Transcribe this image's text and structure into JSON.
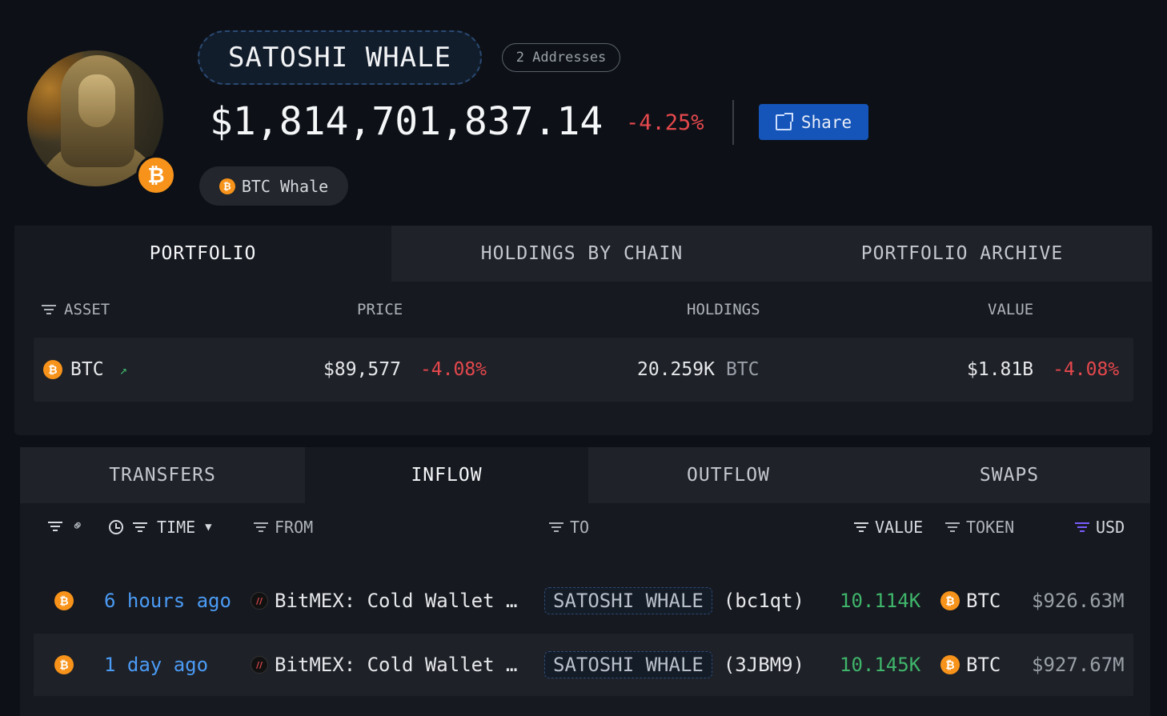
{
  "profile": {
    "name": "SATOSHI WHALE",
    "addresses": "2 Addresses",
    "total_value": "$1,814,701,837.14",
    "total_change": "-4.25%",
    "share_label": "Share",
    "tag": "BTC Whale",
    "badge_symbol": "₿"
  },
  "portfolio_tabs": [
    "PORTFOLIO",
    "HOLDINGS BY CHAIN",
    "PORTFOLIO ARCHIVE"
  ],
  "portfolio_table": {
    "headers": {
      "asset": "ASSET",
      "price": "PRICE",
      "holdings": "HOLDINGS",
      "value": "VALUE"
    },
    "rows": [
      {
        "asset": "BTC",
        "price": "$89,577",
        "price_change": "-4.08%",
        "holdings": "20.259K",
        "holdings_unit": "BTC",
        "value": "$1.81B",
        "value_change": "-4.08%"
      }
    ]
  },
  "transfer_tabs": [
    "TRANSFERS",
    "INFLOW",
    "OUTFLOW",
    "SWAPS"
  ],
  "transfers_table": {
    "headers": {
      "time": "TIME",
      "from": "FROM",
      "to": "TO",
      "value": "VALUE",
      "token": "TOKEN",
      "usd": "USD"
    },
    "rows": [
      {
        "time": "6 hours ago",
        "from": "BitMEX: Cold Wallet …",
        "to_entity": "SATOSHI WHALE",
        "to_addr": "(bc1qt)",
        "value": "10.114K",
        "token": "BTC",
        "usd": "$926.63M"
      },
      {
        "time": "1 day ago",
        "from": "BitMEX: Cold Wallet …",
        "to_entity": "SATOSHI WHALE",
        "to_addr": "(3JBM9)",
        "value": "10.145K",
        "token": "BTC",
        "usd": "$927.67M"
      }
    ]
  },
  "colors": {
    "background": "#0d1117",
    "negative": "#e5484d",
    "positive": "#3fb56b",
    "link": "#4b9bf5",
    "accent": "#1554b8",
    "btc": "#f7931a"
  },
  "icons": {
    "btc": "bitcoin-icon",
    "share": "external-link-icon",
    "filter": "filter-icon",
    "clock": "clock-icon",
    "link": "link-icon",
    "trend": "trending-up-icon"
  }
}
